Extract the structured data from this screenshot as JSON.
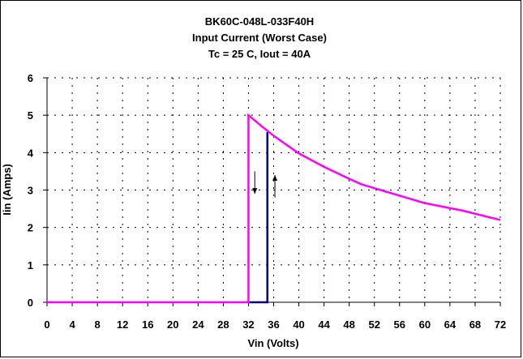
{
  "chart_data": {
    "type": "line",
    "title": [
      "BK60C-048L-033F40H",
      "Input Current (Worst Case)",
      "Tc = 25 C, Iout = 40A"
    ],
    "xlabel": "Vin (Volts)",
    "ylabel": "Iin (Amps)",
    "xlim": [
      0,
      72
    ],
    "ylim": [
      0,
      6
    ],
    "xticks": [
      0,
      4,
      8,
      12,
      16,
      20,
      24,
      28,
      32,
      36,
      40,
      44,
      48,
      52,
      56,
      60,
      64,
      68,
      72
    ],
    "yticks": [
      0,
      1,
      2,
      3,
      4,
      5,
      6
    ],
    "grid": true,
    "series": [
      {
        "color": "#ff00ff",
        "x": [
          0,
          32,
          32,
          34,
          36,
          40,
          44,
          48,
          50,
          56,
          60,
          66,
          72
        ],
        "y": [
          0,
          0,
          5,
          4.72,
          4.45,
          3.98,
          3.62,
          3.3,
          3.15,
          2.85,
          2.65,
          2.45,
          2.2
        ]
      },
      {
        "color": "#000080",
        "x": [
          32,
          35,
          35
        ],
        "y": [
          0,
          0,
          4.55
        ]
      }
    ],
    "annotations": [
      {
        "type": "arrow-down",
        "x": 33,
        "y_from": 3.5,
        "y_to": 2.9
      },
      {
        "type": "arrow-up",
        "x": 36.2,
        "y_from": 2.8,
        "y_to": 3.4
      }
    ]
  }
}
